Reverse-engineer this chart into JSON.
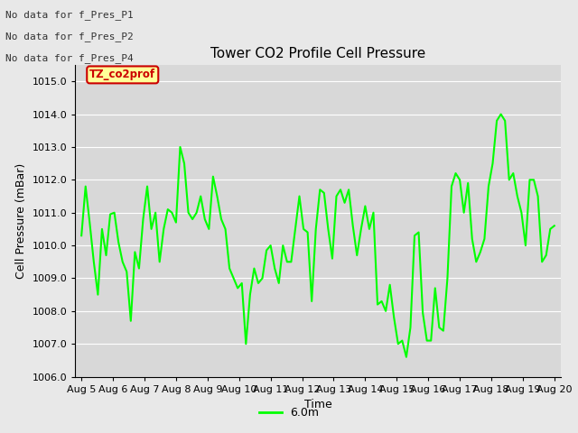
{
  "title": "Tower CO2 Profile Cell Pressure",
  "xlabel": "Time",
  "ylabel": "Cell Pressure (mBar)",
  "ylim": [
    1006.0,
    1015.5
  ],
  "yticks": [
    1006.0,
    1007.0,
    1008.0,
    1009.0,
    1010.0,
    1011.0,
    1012.0,
    1013.0,
    1014.0,
    1015.0
  ],
  "xlabels": [
    "Aug 5",
    "Aug 6",
    "Aug 7",
    "Aug 8",
    "Aug 9",
    "Aug 10",
    "Aug 11",
    "Aug 12",
    "Aug 13",
    "Aug 14",
    "Aug 15",
    "Aug 16",
    "Aug 17",
    "Aug 18",
    "Aug 19",
    "Aug 20"
  ],
  "line_color": "#00FF00",
  "line_width": 1.5,
  "background_color": "#E8E8E8",
  "plot_bg_color": "#D8D8D8",
  "no_data_labels": [
    "No data for f_Pres_P1",
    "No data for f_Pres_P2",
    "No data for f_Pres_P4"
  ],
  "legend_label": "6.0m",
  "legend_color": "#00FF00",
  "tooltip_text": "TZ_co2prof",
  "tooltip_bg": "#FFFF99",
  "tooltip_border": "#CC0000",
  "y_values": [
    1010.3,
    1011.8,
    1010.7,
    1009.5,
    1008.5,
    1010.5,
    1009.7,
    1010.95,
    1011.0,
    1010.1,
    1009.5,
    1009.2,
    1007.7,
    1009.8,
    1009.3,
    1010.8,
    1011.8,
    1010.5,
    1011.0,
    1009.5,
    1010.5,
    1011.1,
    1011.0,
    1010.7,
    1013.0,
    1012.5,
    1011.0,
    1010.8,
    1011.0,
    1011.5,
    1010.8,
    1010.5,
    1012.1,
    1011.5,
    1010.8,
    1010.5,
    1009.3,
    1009.0,
    1008.7,
    1008.85,
    1007.0,
    1008.5,
    1009.3,
    1008.85,
    1009.0,
    1009.85,
    1010.0,
    1009.3,
    1008.85,
    1010.0,
    1009.5,
    1009.5,
    1010.5,
    1011.5,
    1010.5,
    1010.4,
    1008.3,
    1010.5,
    1011.7,
    1011.6,
    1010.5,
    1009.6,
    1011.5,
    1011.7,
    1011.3,
    1011.7,
    1010.6,
    1009.7,
    1010.5,
    1011.2,
    1010.5,
    1011.0,
    1008.2,
    1008.3,
    1008.0,
    1008.8,
    1007.8,
    1007.0,
    1007.1,
    1006.6,
    1007.5,
    1010.3,
    1010.4,
    1007.95,
    1007.1,
    1007.1,
    1008.7,
    1007.5,
    1007.4,
    1009.0,
    1011.8,
    1012.2,
    1012.0,
    1011.0,
    1011.9,
    1010.2,
    1009.5,
    1009.8,
    1010.2,
    1011.8,
    1012.5,
    1013.8,
    1014.0,
    1013.8,
    1012.0,
    1012.2,
    1011.5,
    1011.0,
    1010.0,
    1012.0,
    1012.0,
    1011.5,
    1009.5,
    1009.7,
    1010.5,
    1010.6
  ]
}
